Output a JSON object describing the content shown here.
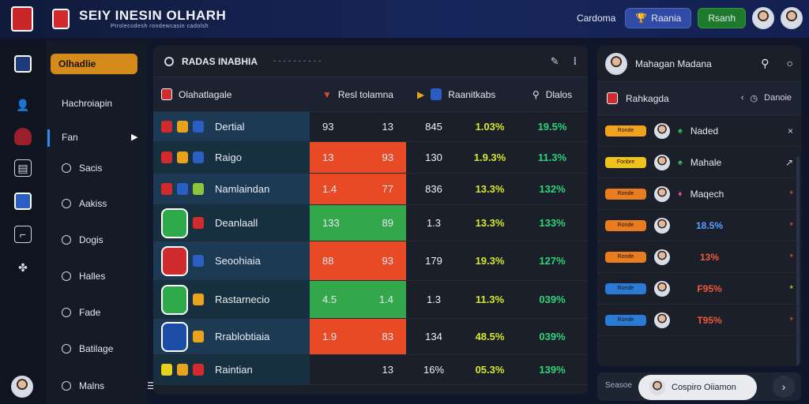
{
  "header": {
    "brand_title": "SEIY  INESIN OLHARH",
    "brand_subtitle": "Ptrolecodesh rondewcasin cadolsh",
    "link_text": "Cardoma",
    "btn_primary": "Raania",
    "btn_secondary": "Rsanh",
    "colors": {
      "primary": "#2f4ba5",
      "secondary": "#1f7a2e",
      "bg": "#17265a"
    }
  },
  "sidebar": {
    "active_pill": "Olhadlie",
    "items": [
      {
        "label": "Hachroiapin",
        "icon": "person-icon"
      },
      {
        "label": "Fan",
        "icon": "star-icon"
      },
      {
        "label": "Sacis",
        "icon": "circle-icon"
      },
      {
        "label": "Aakiss",
        "icon": "settings-icon"
      },
      {
        "label": "Dogis",
        "icon": "dog-icon"
      },
      {
        "label": "Halles",
        "icon": "pen-icon"
      },
      {
        "label": "Fade",
        "icon": "pen-icon"
      },
      {
        "label": "Batilage",
        "icon": "pen-icon"
      },
      {
        "label": "Malns",
        "icon": "circle-icon"
      }
    ]
  },
  "main_panel": {
    "title": "RADAS INABHIA",
    "columns": {
      "team": "Olahatlagale",
      "score": "Resl tolamna",
      "stats": "Raanitkabs",
      "extra": "Dlalos"
    },
    "rows": [
      {
        "team": "Dertial",
        "s1": "93",
        "s2": "13",
        "n": "845",
        "p1": "1.03%",
        "p2": "19.5%",
        "color": "none"
      },
      {
        "team": "Raigo",
        "s1": "13",
        "s2": "93",
        "n": "130",
        "p1": "1.9.3%",
        "p2": "11.3%",
        "color": "red"
      },
      {
        "team": "Namlaindan",
        "s1": "1.4",
        "s2": "77",
        "n": "836",
        "p1": "13.3%",
        "p2": "132%",
        "color": "red"
      },
      {
        "team": "Deanlaall",
        "s1": "133",
        "s2": "89",
        "n": "1.3",
        "p1": "13.3%",
        "p2": "133%",
        "color": "green"
      },
      {
        "team": "Seoohiaia",
        "s1": "88",
        "s2": "93",
        "n": "179",
        "p1": "19.3%",
        "p2": "127%",
        "color": "red"
      },
      {
        "team": "Rastarnecio",
        "s1": "4.5",
        "s2": "1.4",
        "n": "1.3",
        "p1": "11.3%",
        "p2": "039%",
        "color": "green"
      },
      {
        "team": "Rrablobtiaia",
        "s1": "1.9",
        "s2": "83",
        "n": "134",
        "p1": "48.5%",
        "p2": "039%",
        "color": "red"
      },
      {
        "team": "Raintian",
        "s1": "",
        "s2": "13",
        "n": "16%",
        "p1": "05.3%",
        "p2": "139%",
        "color": "none"
      }
    ]
  },
  "manager_panel": {
    "title": "Mahagan Madana",
    "ranking_title": "Rahkagda",
    "sort_label": "Danoie",
    "rows": [
      {
        "badge": "Ronde",
        "name": "Naded",
        "action": "×",
        "badge_color": "#f2a21c"
      },
      {
        "badge": "Fonbre",
        "name": "Mahale",
        "action": "↗",
        "badge_color": "#f0c21a"
      },
      {
        "badge": "Ronde",
        "name": "Maqech",
        "action": "*",
        "badge_color": "#e97c1e"
      },
      {
        "badge": "Ronde",
        "name": "18.5%",
        "action": "*",
        "badge_color": "#e97c1e"
      },
      {
        "badge": "Ronde",
        "name": "13%",
        "action": "*",
        "badge_color": "#e97c1e"
      },
      {
        "badge": "Ronde",
        "name": "F95%",
        "action": "*",
        "badge_color": "#2a7ad6"
      },
      {
        "badge": "Ronde",
        "name": "T95%",
        "action": "*",
        "badge_color": "#2a7ad6"
      }
    ]
  },
  "bottom_bar": {
    "left_text": "Seasoe",
    "pill_text": "Cospiro Oiiamon"
  }
}
